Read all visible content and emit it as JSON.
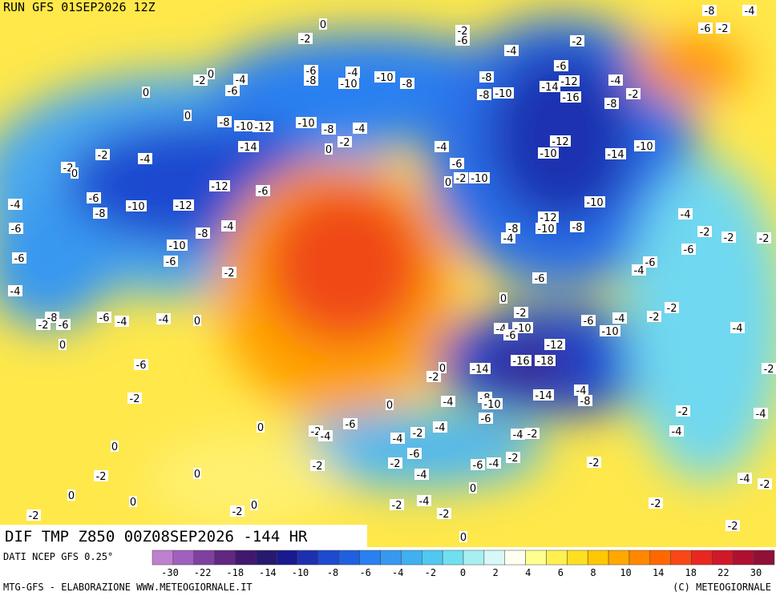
{
  "header": {
    "run": "RUN GFS 01SEP2026 12Z"
  },
  "map": {
    "title": "DIF TMP Z850 00Z08SEP2026 -144 HR",
    "contour_labels": [
      0,
      -2,
      -2,
      -6,
      -2,
      -4,
      -6,
      -6,
      -8,
      -4,
      -10,
      -10,
      -8,
      -8,
      -12,
      -4,
      -14,
      -8,
      -10,
      -16,
      -2,
      -8,
      -4,
      -6,
      -2,
      0,
      0,
      0,
      -8,
      -10,
      -12,
      -10,
      -8,
      -4,
      -2,
      0,
      -14,
      -4,
      -12,
      -10,
      -14,
      -10,
      -2,
      -4,
      -2,
      0,
      -6,
      -10,
      -2,
      0,
      -12,
      -6,
      -6,
      -4,
      -8,
      -10,
      -12,
      -10,
      -4,
      -12,
      -10,
      -8,
      -4,
      -8,
      -4,
      -6,
      -8,
      -10,
      -2,
      -2,
      -2,
      -6,
      -6,
      -6,
      -6,
      -4,
      -2,
      -6,
      -4,
      0,
      -2,
      -2,
      -2,
      -4,
      -6,
      -10,
      -4,
      -8,
      -2,
      -6,
      -6,
      -4,
      -4,
      0,
      -4,
      -10,
      -6,
      0,
      -12,
      -16,
      -18,
      -14,
      0,
      -2,
      -2,
      -6,
      -4,
      -8,
      -8,
      -10,
      -14,
      -2,
      -4,
      0,
      -6,
      -2,
      -4,
      -6,
      -2,
      -4,
      0,
      -4,
      -2,
      -4,
      -4,
      -4,
      -2,
      -6,
      0,
      -2,
      -2,
      -6,
      -4,
      -2,
      -2,
      -2,
      0,
      -4,
      0,
      -4,
      -2,
      0,
      0,
      -4,
      -2,
      0,
      -2,
      -2,
      -2,
      -2,
      -2,
      0,
      -8,
      -4,
      -6,
      -2
    ]
  },
  "footer": {
    "source": "DATI NCEP GFS 0.25°",
    "credit": "MTG-GFS - ELABORAZIONE WWW.METEOGIORNALE.IT",
    "copyright": "(C) METEOGIORNALE"
  },
  "colorbar": {
    "colors": [
      "#c080d0",
      "#a060c0",
      "#8040a0",
      "#602880",
      "#401870",
      "#281870",
      "#1a1a90",
      "#1e30b0",
      "#1e4ad0",
      "#2060e0",
      "#2a80f0",
      "#3898f0",
      "#40b0f0",
      "#50c8f0",
      "#70e0f0",
      "#a8f0f0",
      "#d8f8f8",
      "#fffff0",
      "#ffff90",
      "#fff050",
      "#ffe020",
      "#ffc800",
      "#ffa800",
      "#ff8800",
      "#ff6800",
      "#f84818",
      "#e82820",
      "#d01828",
      "#b01030",
      "#901038"
    ],
    "labels": [
      -30,
      -22,
      -18,
      -14,
      -10,
      -8,
      -6,
      -4,
      -2,
      0,
      2,
      4,
      6,
      8,
      10,
      14,
      18,
      22,
      30
    ]
  }
}
